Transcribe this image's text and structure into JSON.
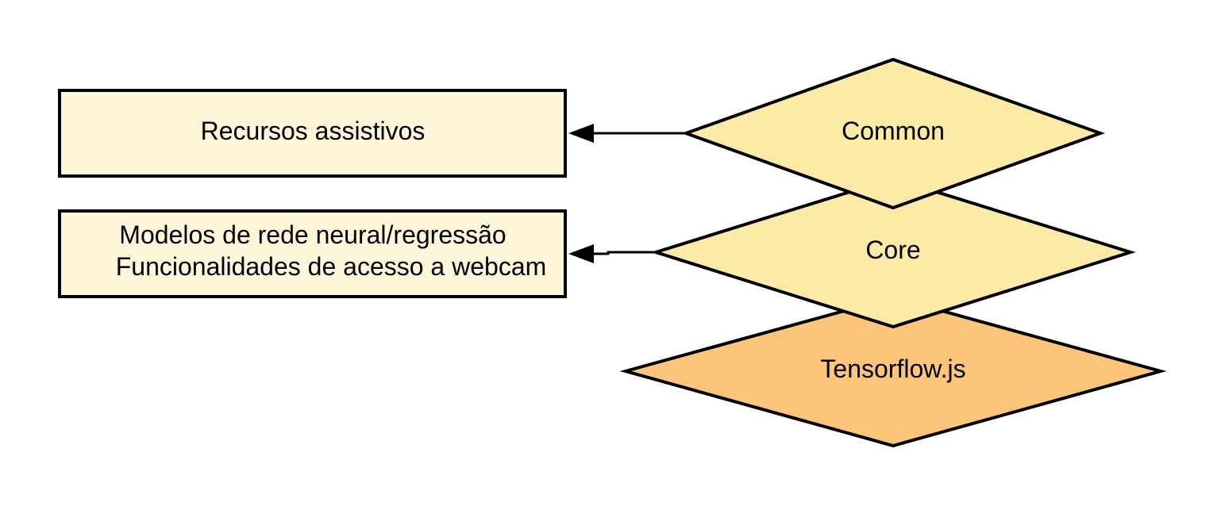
{
  "layers": {
    "common": {
      "label": "Common"
    },
    "core": {
      "label": "Core"
    },
    "tensorflow": {
      "label": "Tensorflow.js"
    }
  },
  "features": {
    "assistive": {
      "label": "Recursos assistivos"
    },
    "models": {
      "line1": "Modelos de rede neural/regressão",
      "line2": "Funcionalidades de acesso a webcam"
    }
  },
  "colors": {
    "box_fill": "#FEF6D9",
    "layer_fill": "#FEEAA7",
    "base_fill": "#FDC57A",
    "stroke": "#000000"
  }
}
